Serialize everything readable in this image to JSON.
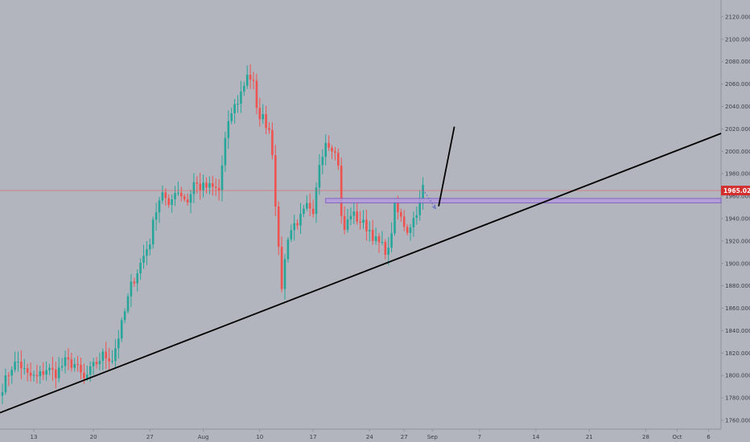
{
  "chart_data": {
    "type": "candlestick",
    "background": "#b2b5be",
    "colors": {
      "up": "#26a69a",
      "down": "#ef5350",
      "trendline": "#000000",
      "zone": "#b39ddb",
      "zone_border": "#7e57c2",
      "price_line": "#ef5350",
      "price_tag": "#d32f2f"
    },
    "y_axis": {
      "min": 1755,
      "max": 2130,
      "ticks": [
        "1760.000",
        "1780.000",
        "1800.000",
        "1820.000",
        "1840.000",
        "1860.000",
        "1880.000",
        "1900.000",
        "1920.000",
        "1940.000",
        "1960.000",
        "1980.000",
        "2000.000",
        "2020.000",
        "2040.000",
        "2060.000",
        "2080.000",
        "2100.000",
        "2120.000"
      ],
      "position": "right"
    },
    "x_axis": {
      "labels": [
        "13",
        "20",
        "27",
        "Aug",
        "10",
        "17",
        "24",
        "27",
        "Sep",
        "7",
        "14",
        "21",
        "28",
        "Oct",
        "6"
      ],
      "bar_index": [
        10,
        29,
        47,
        64,
        82,
        99,
        117,
        128,
        137,
        152,
        170,
        187,
        205,
        215,
        225
      ]
    },
    "current_price": "1965.026",
    "ohlc_anchors": [
      [
        0,
        1790
      ],
      [
        3,
        1808
      ],
      [
        5,
        1812
      ],
      [
        8,
        1800
      ],
      [
        11,
        1798
      ],
      [
        14,
        1806
      ],
      [
        17,
        1802
      ],
      [
        20,
        1812
      ],
      [
        23,
        1810
      ],
      [
        26,
        1796
      ],
      [
        29,
        1808
      ],
      [
        32,
        1818
      ],
      [
        35,
        1815
      ],
      [
        38,
        1845
      ],
      [
        41,
        1880
      ],
      [
        44,
        1900
      ],
      [
        47,
        1920
      ],
      [
        49,
        1950
      ],
      [
        51,
        1965
      ],
      [
        53,
        1948
      ],
      [
        55,
        1966
      ],
      [
        57,
        1962
      ],
      [
        59,
        1955
      ],
      [
        61,
        1972
      ],
      [
        63,
        1968
      ],
      [
        66,
        1968
      ],
      [
        69,
        1965
      ],
      [
        71,
        2010
      ],
      [
        73,
        2035
      ],
      [
        75,
        2045
      ],
      [
        77,
        2060
      ],
      [
        78,
        2070
      ],
      [
        80,
        2060
      ],
      [
        81,
        2035
      ],
      [
        83,
        2030
      ],
      [
        85,
        2020
      ],
      [
        86,
        2000
      ],
      [
        87,
        1955
      ],
      [
        88,
        1910
      ],
      [
        89,
        1880
      ],
      [
        91,
        1925
      ],
      [
        93,
        1935
      ],
      [
        95,
        1940
      ],
      [
        97,
        1950
      ],
      [
        99,
        1940
      ],
      [
        101,
        1990
      ],
      [
        103,
        2010
      ],
      [
        105,
        2005
      ],
      [
        107,
        1990
      ],
      [
        108,
        1940
      ],
      [
        109,
        1930
      ],
      [
        111,
        1945
      ],
      [
        113,
        1940
      ],
      [
        115,
        1935
      ],
      [
        117,
        1930
      ],
      [
        119,
        1920
      ],
      [
        121,
        1915
      ],
      [
        123,
        1910
      ],
      [
        125,
        1950
      ],
      [
        127,
        1940
      ],
      [
        129,
        1930
      ],
      [
        131,
        1940
      ],
      [
        133,
        1955
      ],
      [
        134,
        1970
      ]
    ],
    "annotations": {
      "trendline": {
        "from": [
          -1.5,
          1766
        ],
        "to": [
          229,
          2016
        ]
      },
      "zone": {
        "x_from": 103,
        "x_to": 229,
        "y_low": 1954,
        "y_high": 1958
      },
      "projection_dashed": {
        "points": [
          [
            134,
            1966
          ],
          [
            138,
            1949
          ]
        ]
      },
      "projection_solid": {
        "points": [
          [
            139,
            1951
          ],
          [
            144,
            2022
          ]
        ]
      }
    }
  }
}
